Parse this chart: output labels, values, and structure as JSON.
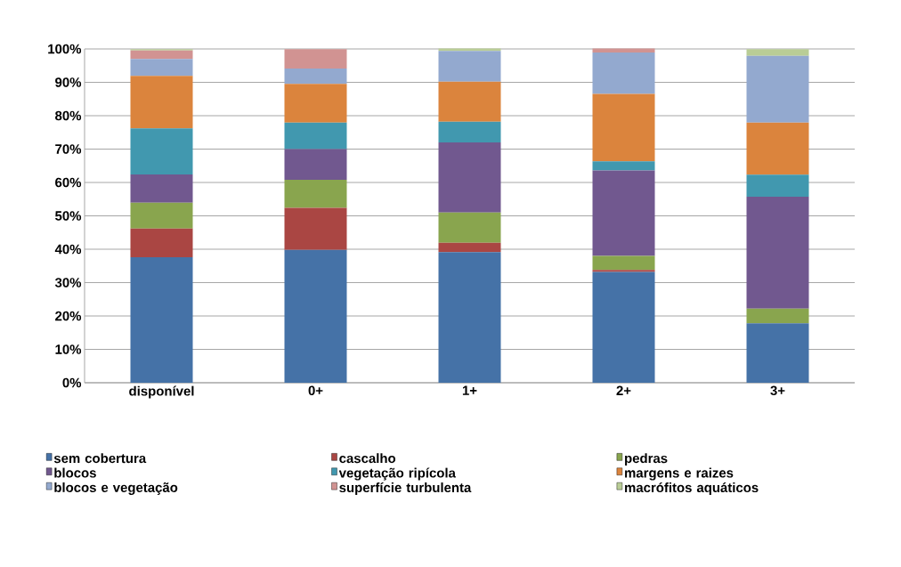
{
  "chart_data": {
    "type": "bar",
    "stacked": true,
    "grid": "y",
    "legend": "bottom",
    "categories": [
      "disponível",
      "0+",
      "1+",
      "2+",
      "3+"
    ],
    "ylim": [
      0,
      100
    ],
    "yticks": [
      {
        "value": 0,
        "label": "0%"
      },
      {
        "value": 10,
        "label": "10%"
      },
      {
        "value": 20,
        "label": "20%"
      },
      {
        "value": 30,
        "label": "30%"
      },
      {
        "value": 40,
        "label": "40%"
      },
      {
        "value": 50,
        "label": "50%"
      },
      {
        "value": 60,
        "label": "60%"
      },
      {
        "value": 70,
        "label": "70%"
      },
      {
        "value": 80,
        "label": "80%"
      },
      {
        "value": 90,
        "label": "90%"
      },
      {
        "value": 100,
        "label": "100%"
      }
    ],
    "series": [
      {
        "name": "sem cobertura",
        "color": "#4572a7",
        "values": [
          37.6,
          39.8,
          39.1,
          33.2,
          17.8
        ]
      },
      {
        "name": "cascalho",
        "color": "#aa4643",
        "values": [
          8.6,
          12.6,
          2.8,
          0.6,
          0
        ]
      },
      {
        "name": "pedras",
        "color": "#89a54e",
        "values": [
          7.7,
          8.4,
          9.1,
          4.2,
          4.4
        ]
      },
      {
        "name": "blocos",
        "color": "#71588f",
        "values": [
          8.5,
          9.2,
          21.0,
          25.6,
          33.5
        ]
      },
      {
        "name": "vegetação ripícola",
        "color": "#4198af",
        "values": [
          13.8,
          7.9,
          6.2,
          2.7,
          6.6
        ]
      },
      {
        "name": "margens e raizes",
        "color": "#db843d",
        "values": [
          15.7,
          11.6,
          12.0,
          20.2,
          15.6
        ]
      },
      {
        "name": "blocos e vegetação",
        "color": "#93a9cf",
        "values": [
          5.1,
          4.6,
          9.2,
          12.4,
          20.0
        ]
      },
      {
        "name": "superfície turbulenta",
        "color": "#d19392",
        "values": [
          2.5,
          5.8,
          0,
          1.2,
          0
        ]
      },
      {
        "name": "macrófitos aquáticos",
        "color": "#b9cd96",
        "values": [
          0.4,
          0,
          0.7,
          0,
          2.0
        ]
      }
    ]
  }
}
